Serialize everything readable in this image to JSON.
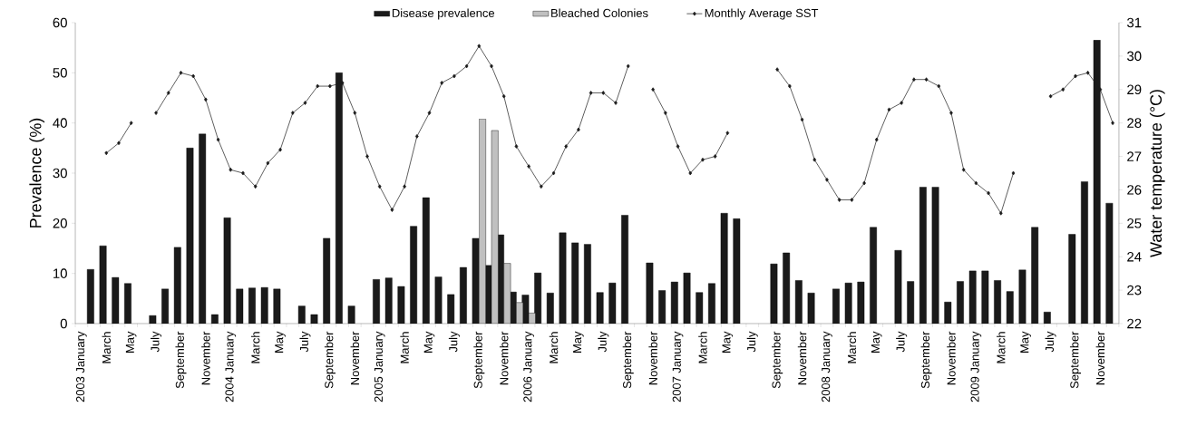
{
  "chart_data": {
    "type": "bar",
    "categories": [
      "2003 January",
      null,
      "March",
      null,
      "May",
      null,
      "July",
      null,
      "September",
      null,
      "November",
      null,
      "2004 January",
      null,
      "March",
      null,
      "May",
      null,
      "July",
      null,
      "September",
      null,
      "November",
      null,
      "2005 January",
      null,
      "March",
      null,
      "May",
      null,
      "July",
      null,
      "September",
      null,
      "November",
      null,
      "2006 January",
      null,
      "March",
      null,
      "May",
      null,
      "July",
      null,
      "September",
      null,
      "November",
      null,
      "2007 January",
      null,
      "March",
      null,
      "May",
      null,
      "July",
      null,
      "September",
      null,
      "November",
      null,
      "2008 January",
      null,
      "March",
      null,
      "May",
      null,
      "July",
      null,
      "September",
      null,
      "November",
      null,
      "2009 January",
      null,
      "March",
      null,
      "May",
      null,
      "July",
      null,
      "September",
      null,
      "November",
      null
    ],
    "series": [
      {
        "name": "Disease prevalence",
        "type": "bar",
        "color": "#1a1a1a",
        "values": [
          null,
          10.8,
          15.5,
          9.2,
          8.0,
          null,
          1.6,
          6.9,
          15.2,
          35.0,
          37.8,
          1.8,
          21.1,
          6.9,
          7.1,
          7.2,
          6.9,
          null,
          3.5,
          1.8,
          17.0,
          50.0,
          3.5,
          null,
          8.8,
          9.1,
          7.4,
          19.4,
          25.1,
          9.3,
          5.8,
          11.2,
          17.0,
          11.6,
          17.7,
          6.3,
          5.7,
          10.1,
          6.1,
          18.1,
          16.1,
          15.8,
          6.2,
          8.1,
          21.6,
          null,
          12.1,
          6.6,
          8.3,
          10.1,
          6.2,
          8.0,
          22.0,
          20.9,
          null,
          null,
          11.9,
          14.1,
          8.6,
          6.1,
          null,
          6.9,
          8.1,
          8.3,
          19.2,
          null,
          14.6,
          8.4,
          27.2,
          27.2,
          4.3,
          8.4,
          10.5,
          10.5,
          8.6,
          6.4,
          10.7,
          19.2,
          2.3,
          null,
          17.8,
          28.3,
          56.5,
          24.0
        ]
      },
      {
        "name": "Bleached Colonies",
        "type": "bar",
        "color": "#c0c0c0",
        "values": [
          null,
          null,
          null,
          null,
          null,
          null,
          null,
          null,
          null,
          null,
          null,
          null,
          null,
          null,
          null,
          null,
          null,
          null,
          null,
          null,
          null,
          null,
          null,
          null,
          null,
          null,
          null,
          null,
          null,
          null,
          null,
          null,
          40.8,
          38.5,
          12.0,
          4.2,
          2.1,
          null,
          null,
          null,
          null,
          null,
          null,
          null,
          null,
          null,
          null,
          null,
          null,
          null,
          null,
          null,
          null,
          null,
          null,
          null,
          null,
          null,
          null,
          null,
          null,
          null,
          null,
          null,
          null,
          null,
          null,
          null,
          null,
          null,
          null,
          null,
          null,
          null,
          null,
          null,
          null,
          null,
          null,
          null,
          null,
          null,
          null,
          null
        ]
      },
      {
        "name": "Monthly Average SST",
        "type": "line",
        "axis": "y2",
        "marker": "diamond",
        "color": "#1a1a1a",
        "values": [
          null,
          null,
          27.1,
          27.4,
          28.0,
          null,
          28.3,
          28.9,
          29.5,
          29.4,
          28.7,
          27.5,
          26.6,
          26.5,
          26.1,
          26.8,
          27.2,
          28.3,
          28.6,
          29.1,
          29.1,
          29.2,
          28.3,
          27.0,
          26.1,
          25.4,
          26.1,
          27.6,
          28.3,
          29.2,
          29.4,
          29.7,
          30.3,
          29.7,
          28.8,
          27.3,
          26.7,
          26.1,
          26.5,
          27.3,
          27.8,
          28.9,
          28.9,
          28.6,
          29.7,
          null,
          29.0,
          28.3,
          27.3,
          26.5,
          26.9,
          27.0,
          27.7,
          null,
          null,
          null,
          29.6,
          29.1,
          28.1,
          26.9,
          26.3,
          25.7,
          25.7,
          26.2,
          27.5,
          28.4,
          28.6,
          29.3,
          29.3,
          29.1,
          28.3,
          26.6,
          26.2,
          25.9,
          25.3,
          26.5,
          null,
          null,
          28.8,
          29.0,
          29.4,
          29.5,
          29.0,
          28.0
        ]
      }
    ],
    "ylim": [
      0,
      60
    ],
    "yticks": [
      0,
      10,
      20,
      30,
      40,
      50,
      60
    ],
    "y2lim": [
      22,
      31
    ],
    "y2ticks": [
      22,
      23,
      24,
      25,
      26,
      27,
      28,
      29,
      30,
      31
    ],
    "ylabel": "Prevalence (%)",
    "y2label": "Water temperature (°C)",
    "legend": "top"
  }
}
